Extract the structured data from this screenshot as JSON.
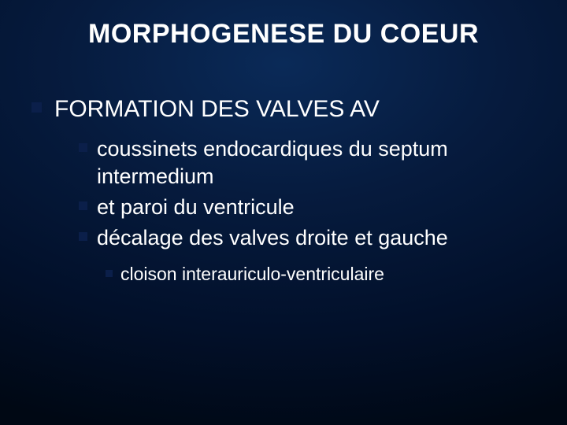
{
  "slide": {
    "background_gradient": [
      "#0a2a58",
      "#061b3e",
      "#02102a",
      "#000814"
    ],
    "text_color": "#ffffff",
    "bullet_color": "#0b1f4a",
    "title": "MORPHOGENESE DU COEUR",
    "title_fontsize": 34,
    "lvl1_fontsize": 30,
    "lvl2_fontsize": 27,
    "lvl3_fontsize": 23,
    "content": {
      "heading": "FORMATION DES VALVES AV",
      "points": [
        "coussinets endocardiques du septum intermedium",
        "et paroi du ventricule",
        "décalage des valves droite et gauche"
      ],
      "subpoint": "cloison interauriculo-ventriculaire"
    }
  }
}
